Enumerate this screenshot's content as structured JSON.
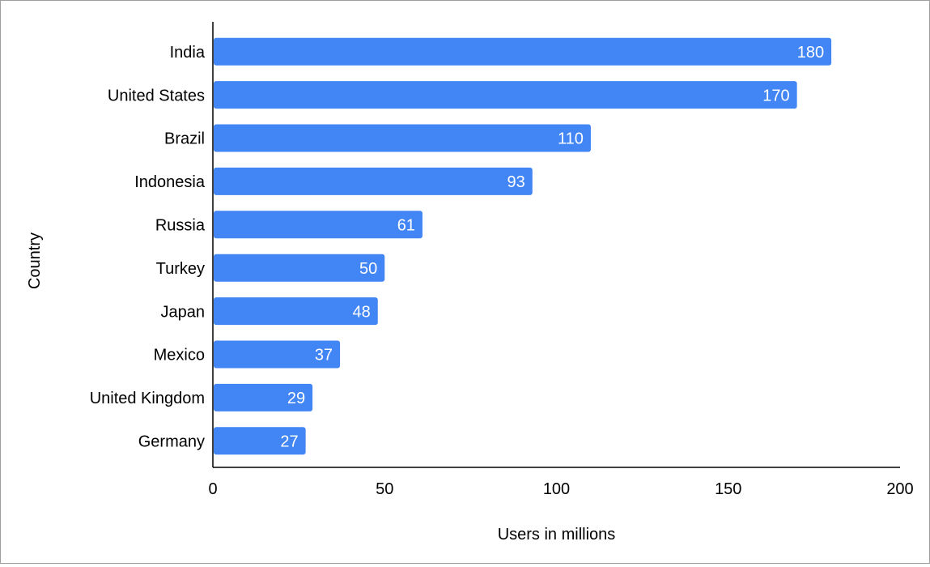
{
  "chart_data": {
    "type": "bar",
    "orientation": "horizontal",
    "title": "",
    "xlabel": "Users in millions",
    "ylabel": "Country",
    "categories": [
      "India",
      "United States",
      "Brazil",
      "Indonesia",
      "Russia",
      "Turkey",
      "Japan",
      "Mexico",
      "United Kingdom",
      "Germany"
    ],
    "values": [
      180,
      170,
      110,
      93,
      61,
      50,
      48,
      37,
      29,
      27
    ],
    "data_labels": [
      "180",
      "170",
      "110",
      "93",
      "61",
      "50",
      "48",
      "37",
      "29",
      "27"
    ],
    "xlim": [
      0,
      200
    ],
    "xticks": [
      0,
      50,
      100,
      150,
      200
    ],
    "xtick_labels": [
      "0",
      "50",
      "100",
      "150",
      "200"
    ],
    "grid": false,
    "legend": "none",
    "colors": {
      "bar": "#4285f4",
      "data_label": "#ffffff",
      "axis": "#000000",
      "text": "#000000"
    }
  }
}
